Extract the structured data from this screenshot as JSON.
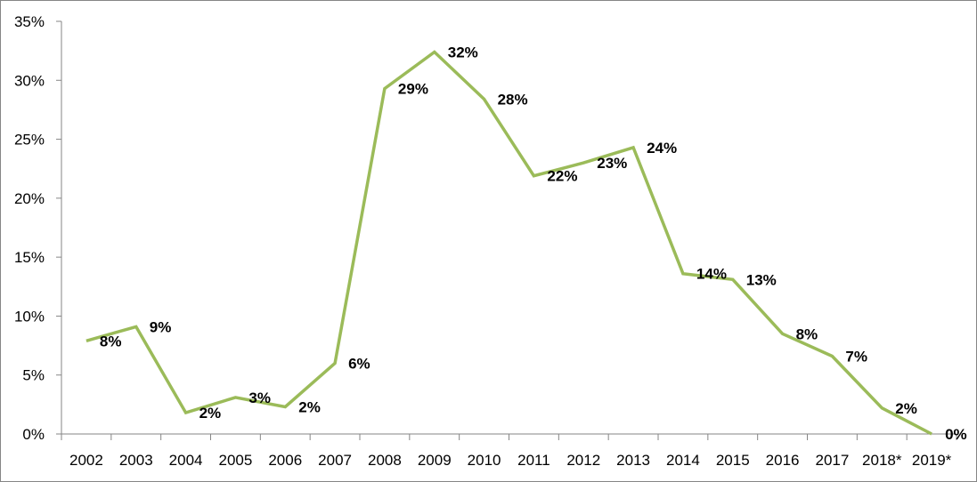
{
  "chart_data": {
    "type": "line",
    "title": "",
    "xlabel": "",
    "ylabel": "",
    "categories": [
      "2002",
      "2003",
      "2004",
      "2005",
      "2006",
      "2007",
      "2008",
      "2009",
      "2010",
      "2011",
      "2012",
      "2013",
      "2014",
      "2015",
      "2016",
      "2017",
      "2018*",
      "2019*"
    ],
    "series": [
      {
        "values": [
          7.9,
          9.1,
          1.8,
          3.1,
          2.3,
          6.0,
          29.3,
          32.4,
          28.4,
          21.9,
          23.0,
          24.3,
          13.6,
          13.1,
          8.5,
          6.6,
          2.2,
          0.0
        ],
        "labels": [
          "8%",
          "9%",
          "2%",
          "3%",
          "2%",
          "6%",
          "29%",
          "32%",
          "28%",
          "22%",
          "23%",
          "24%",
          "14%",
          "13%",
          "8%",
          "7%",
          "2%",
          "0%"
        ],
        "color": "#9bbb59"
      }
    ],
    "ylim": [
      0,
      35
    ],
    "yticks": [
      0,
      5,
      10,
      15,
      20,
      25,
      30,
      35
    ],
    "ytick_labels": [
      "0%",
      "5%",
      "10%",
      "15%",
      "20%",
      "25%",
      "30%",
      "35%"
    ],
    "grid": false,
    "legend": "none",
    "axis_color": "#868686"
  }
}
